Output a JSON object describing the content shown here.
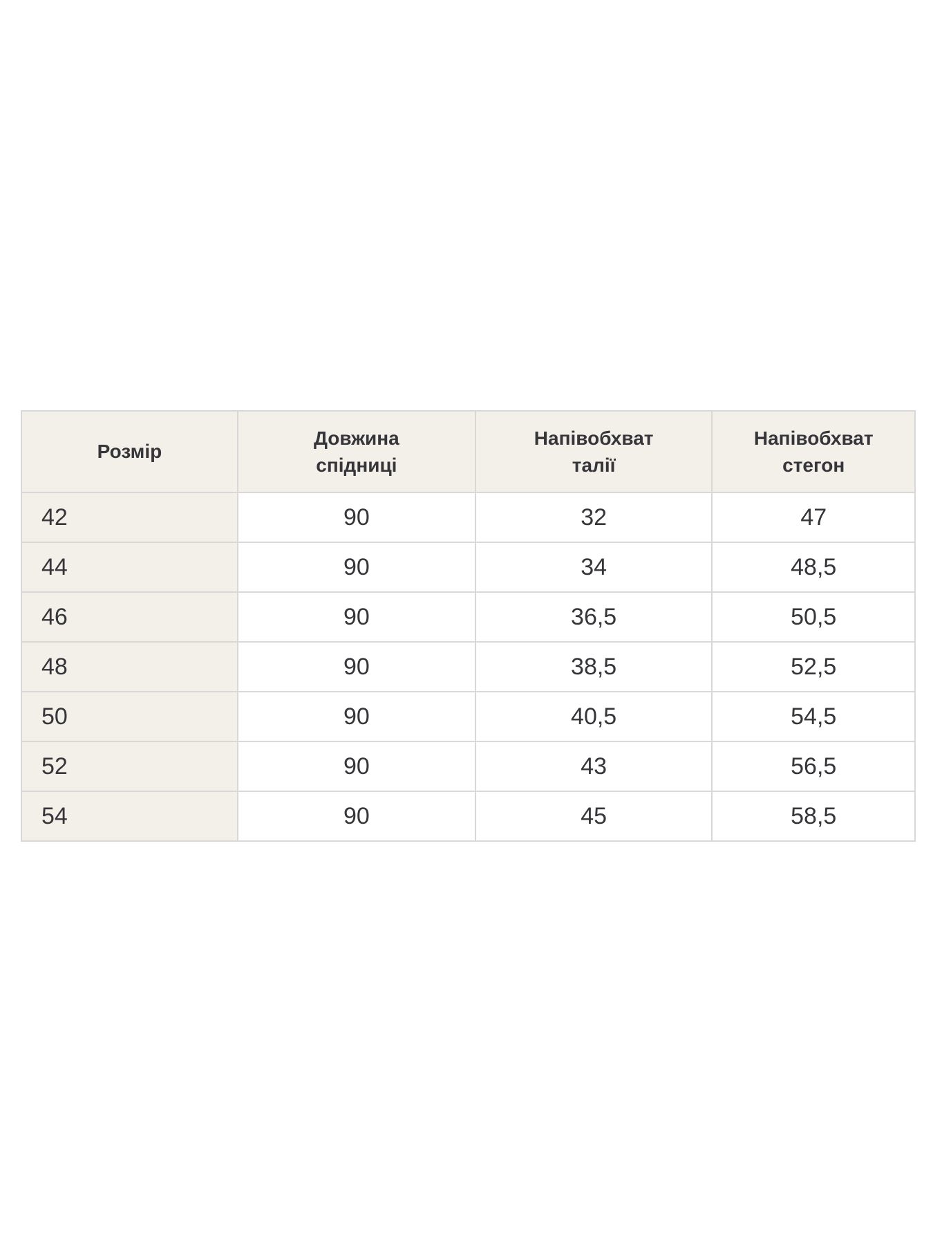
{
  "size_table": {
    "headers": [
      {
        "label": "Розмір"
      },
      {
        "label": "Довжина\nспідниці"
      },
      {
        "label": "Напівобхват\nталії"
      },
      {
        "label": "Напівобхват\nстегон"
      }
    ],
    "rows": [
      [
        "42",
        "90",
        "32",
        "47"
      ],
      [
        "44",
        "90",
        "34",
        "48,5"
      ],
      [
        "46",
        "90",
        "36,5",
        "50,5"
      ],
      [
        "48",
        "90",
        "38,5",
        "52,5"
      ],
      [
        "50",
        "90",
        "40,5",
        "54,5"
      ],
      [
        "52",
        "90",
        "43",
        "56,5"
      ],
      [
        "54",
        "90",
        "45",
        "58,5"
      ]
    ],
    "colors": {
      "header_bg": "#f2f0e8",
      "row_label_bg": "#f2f0e8",
      "data_cell_bg": "#ffffff",
      "border": "#d8d8d8",
      "text": "#35353a",
      "page_bg": "#ffffff"
    }
  }
}
